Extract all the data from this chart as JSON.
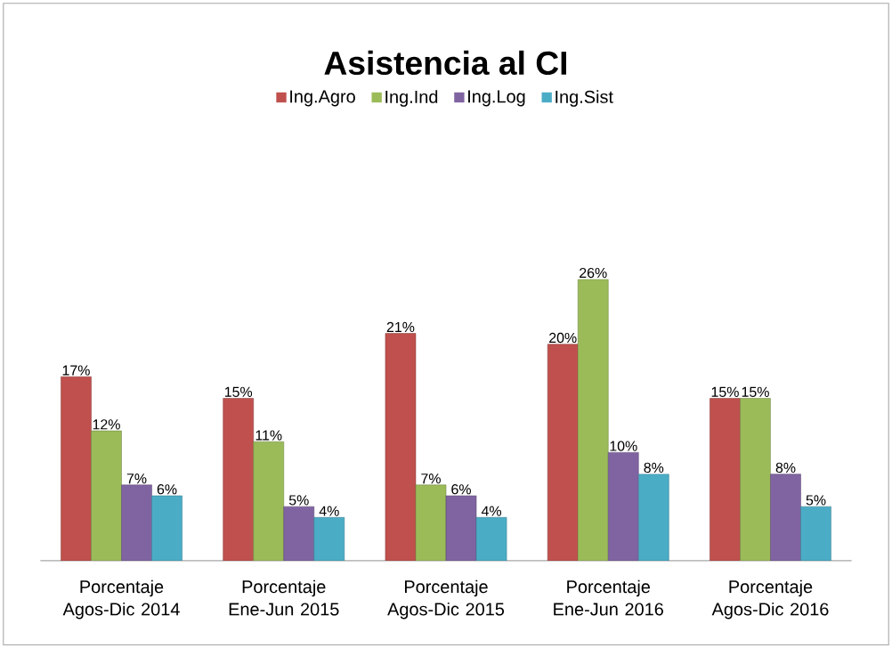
{
  "chart_data": {
    "type": "bar",
    "title": "Asistencia al CI",
    "categories": [
      "Porcentaje Agos-Dic 2014",
      "Porcentaje Ene-Jun 2015",
      "Porcentaje Agos-Dic 2015",
      "Porcentaje Ene-Jun 2016",
      "Porcentaje Agos-Dic 2016"
    ],
    "series": [
      {
        "name": "Ing.Agro",
        "color": "#c0504d",
        "values": [
          17,
          15,
          21,
          20,
          15
        ],
        "value_labels": [
          "17%",
          "15%",
          "21%",
          "20%",
          "15%"
        ]
      },
      {
        "name": "Ing.Ind",
        "color": "#9bbb59",
        "values": [
          12,
          11,
          7,
          26,
          15
        ],
        "value_labels": [
          "12%",
          "11%",
          "7%",
          "26%",
          "15%"
        ]
      },
      {
        "name": "Ing.Log",
        "color": "#8064a2",
        "values": [
          7,
          5,
          6,
          10,
          8
        ],
        "value_labels": [
          "7%",
          "5%",
          "6%",
          "10%",
          "8%"
        ]
      },
      {
        "name": "Ing.Sist",
        "color": "#4bacc6",
        "values": [
          6,
          4,
          4,
          8,
          5
        ],
        "value_labels": [
          "6%",
          "4%",
          "4%",
          "8%",
          "5%"
        ]
      }
    ],
    "legend": "top"
  }
}
